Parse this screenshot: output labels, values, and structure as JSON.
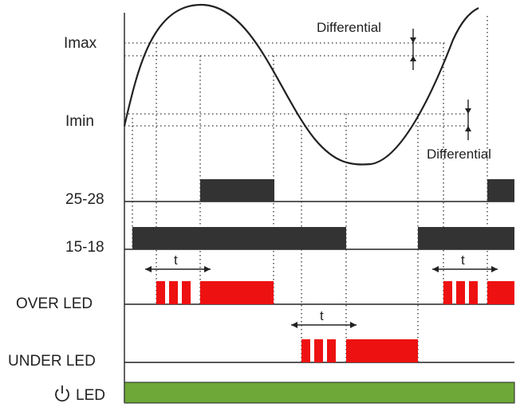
{
  "labels": {
    "imax": "Imax",
    "imin": "Imin",
    "differential_top": "Differential",
    "differential_bottom": "Differential",
    "relay_25_28": "25-28",
    "relay_15_18": "15-18",
    "over_led": "OVER LED",
    "under_led": "UNDER LED",
    "power_led": "LED",
    "power_icon": "power-icon",
    "delay_t": "t"
  },
  "colors": {
    "relay_bar": "#333333",
    "led_red": "#ee1111",
    "led_green": "#6ea838",
    "line": "#222222"
  }
}
